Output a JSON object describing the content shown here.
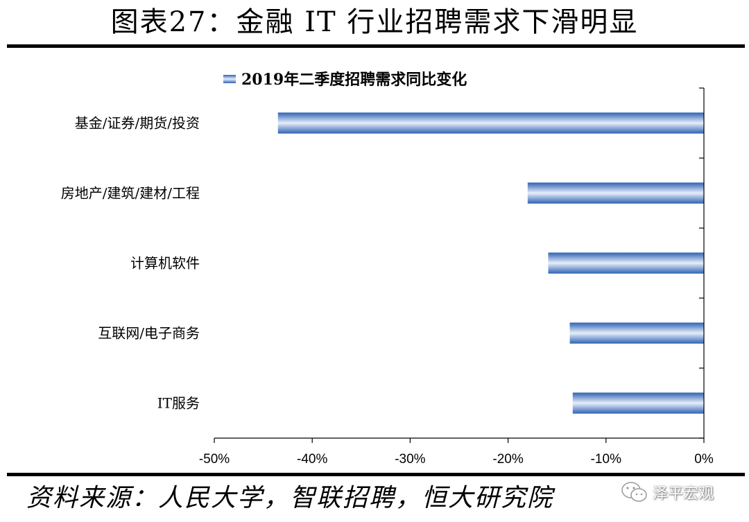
{
  "header": {
    "title": "图表27：金融 IT 行业招聘需求下滑明显"
  },
  "footer": {
    "source": "资料来源：人民大学，智联招聘，恒大研究院"
  },
  "watermark": {
    "text": "泽平宏观",
    "icon": "wechat-icon"
  },
  "colors": {
    "bar_dark": "#2f62b4",
    "bar_light": "#e6eef9",
    "axis": "#000000"
  },
  "chart_data": {
    "type": "bar",
    "orientation": "horizontal",
    "title": "",
    "xlabel": "",
    "ylabel": "",
    "categories": [
      "基金/证券/期货/投资",
      "房地产/建筑/建材/工程",
      "计算机软件",
      "互联网/电子商务",
      "IT服务"
    ],
    "series": [
      {
        "name": "2019年二季度招聘需求同比变化",
        "values": [
          -43.5,
          -18.0,
          -15.9,
          -13.7,
          -13.4
        ]
      }
    ],
    "xlim": [
      -50,
      0
    ],
    "xticks": [
      "-50%",
      "-40%",
      "-30%",
      "-20%",
      "-10%",
      "0%"
    ],
    "grid": false,
    "legend_position": "top"
  }
}
